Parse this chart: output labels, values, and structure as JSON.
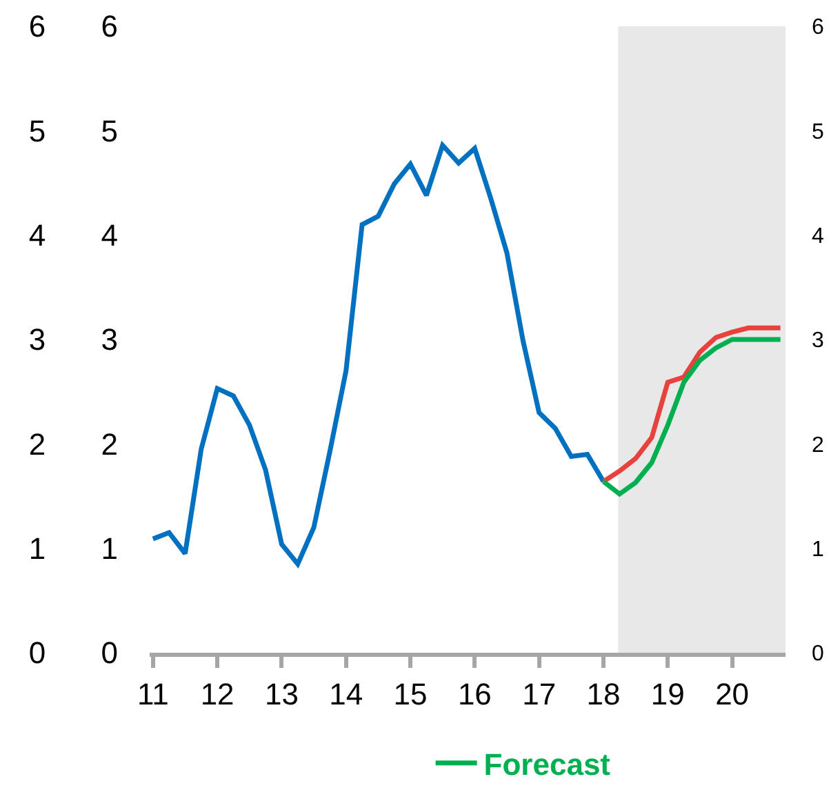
{
  "chart_data": {
    "type": "line",
    "series": [
      {
        "color": "#0070c0",
        "x": [
          11.0,
          11.25,
          11.5,
          11.75,
          12.0,
          12.25,
          12.5,
          12.75,
          13.0,
          13.25,
          13.5,
          13.75,
          14.0,
          14.25,
          14.5,
          14.75,
          15.0,
          15.25,
          15.5,
          15.75,
          16.0,
          16.25,
          16.5,
          16.75,
          17.0,
          17.25,
          17.5,
          17.75,
          18.0
        ],
        "values": [
          1.09,
          1.15,
          0.95,
          1.95,
          2.53,
          2.46,
          2.18,
          1.75,
          1.04,
          0.85,
          1.2,
          1.93,
          2.7,
          4.1,
          4.18,
          4.49,
          4.68,
          4.38,
          4.86,
          4.69,
          4.83,
          4.35,
          3.83,
          2.99,
          2.3,
          2.15,
          1.88,
          1.9,
          1.64
        ]
      },
      {
        "color": "#e8423f",
        "x": [
          18.0,
          18.25,
          18.5,
          18.75,
          19.0,
          19.25,
          19.5,
          19.75,
          20.0,
          20.25,
          20.5,
          20.75
        ],
        "values": [
          1.64,
          1.74,
          1.86,
          2.06,
          2.59,
          2.64,
          2.88,
          3.02,
          3.07,
          3.11,
          3.11,
          3.11
        ]
      },
      {
        "name": "Forecast",
        "color": "#00b050",
        "x": [
          18.0,
          18.25,
          18.5,
          18.75,
          19.0,
          19.25,
          19.5,
          19.75,
          20.0,
          20.25,
          20.5,
          20.75
        ],
        "values": [
          1.64,
          1.52,
          1.63,
          1.82,
          2.18,
          2.59,
          2.8,
          2.92,
          3.0,
          3.0,
          3.0,
          3.0
        ]
      }
    ],
    "xlim": [
      10.95,
      20.83
    ],
    "xticks": [
      11,
      12,
      13,
      14,
      15,
      16,
      17,
      18,
      19,
      20
    ],
    "ylim": [
      0,
      6
    ],
    "yticks": [
      0,
      1,
      2,
      3,
      4,
      5,
      6
    ],
    "y2lim": [
      0,
      6
    ],
    "y2ticks": [
      0,
      1,
      2,
      3,
      4,
      5,
      6
    ],
    "y3lim": [
      0,
      6
    ],
    "y3ticks": [
      0,
      1,
      2,
      3,
      4,
      5,
      6
    ],
    "bands": [
      {
        "axis": "x",
        "from": 18.23,
        "to": 20.83,
        "color": "#e8e8e8"
      }
    ],
    "grid": false,
    "legend": "bottom",
    "marker": "none",
    "line_style": "solid"
  }
}
